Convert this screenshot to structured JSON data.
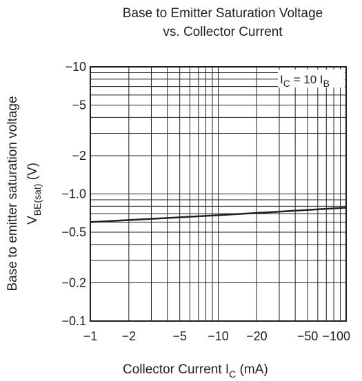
{
  "chart_data": {
    "type": "line",
    "title_line1": "Base to Emitter Saturation Voltage",
    "title_line2": "vs. Collector Current",
    "xlabel": {
      "main": "Collector Current  I",
      "sub": "C",
      "tail": "  (mA)"
    },
    "ylabel_line1": "Base to emitter saturation voltage",
    "ylabel_line2": {
      "main": "V",
      "sub": "BE(sat)",
      "tail": "  (V)"
    },
    "annotation": {
      "a": "I",
      "a_sub": "C",
      "b": " = 10 I",
      "b_sub": "B"
    },
    "x_scale": "log",
    "y_scale": "log",
    "xlim": [
      -1,
      -100
    ],
    "ylim": [
      -0.1,
      -10
    ],
    "x_ticks": [
      -1,
      -2,
      -5,
      -10,
      -20,
      -50,
      -100
    ],
    "x_tick_labels": [
      "−1",
      "−2",
      "−5",
      "−10",
      "−20",
      "−50",
      "−100"
    ],
    "y_ticks": [
      -0.1,
      -0.2,
      -0.5,
      -1.0,
      -2,
      -5,
      -10
    ],
    "y_tick_labels": [
      "−0.1",
      "−0.2",
      "−0.5",
      "−1.0",
      "−2",
      "−5",
      "−10"
    ],
    "grid": true,
    "series": [
      {
        "x": [
          -1,
          -10,
          -100
        ],
        "y": [
          -0.6,
          -0.68,
          -0.78
        ]
      }
    ]
  }
}
